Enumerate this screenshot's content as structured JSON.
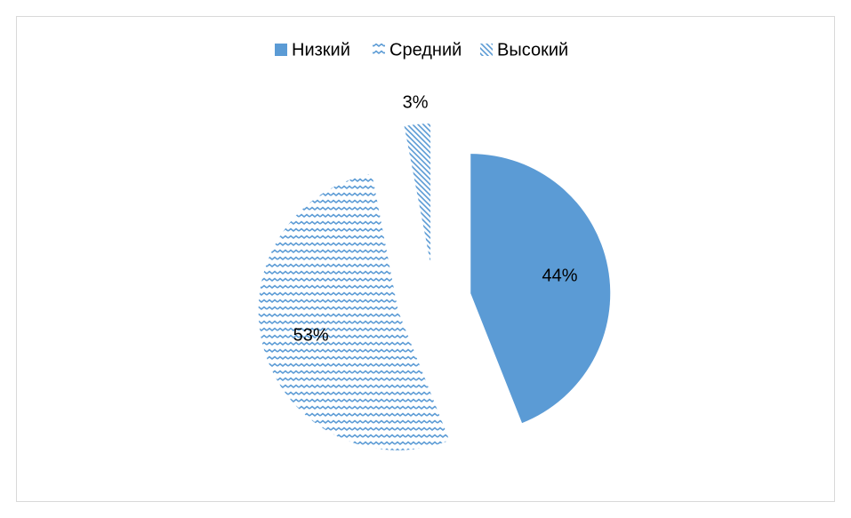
{
  "chart_data": {
    "type": "pie",
    "categories": [
      "Низкий",
      "Средний",
      "Высокий"
    ],
    "values": [
      44,
      53,
      3
    ],
    "value_labels": [
      "44%",
      "53%",
      "3%"
    ],
    "colors": [
      "#5b9bd5",
      "#5b9bd5",
      "#5b9bd5"
    ],
    "patterns": [
      "solid",
      "wave",
      "diagonal"
    ],
    "exploded": true,
    "legend": "top"
  }
}
